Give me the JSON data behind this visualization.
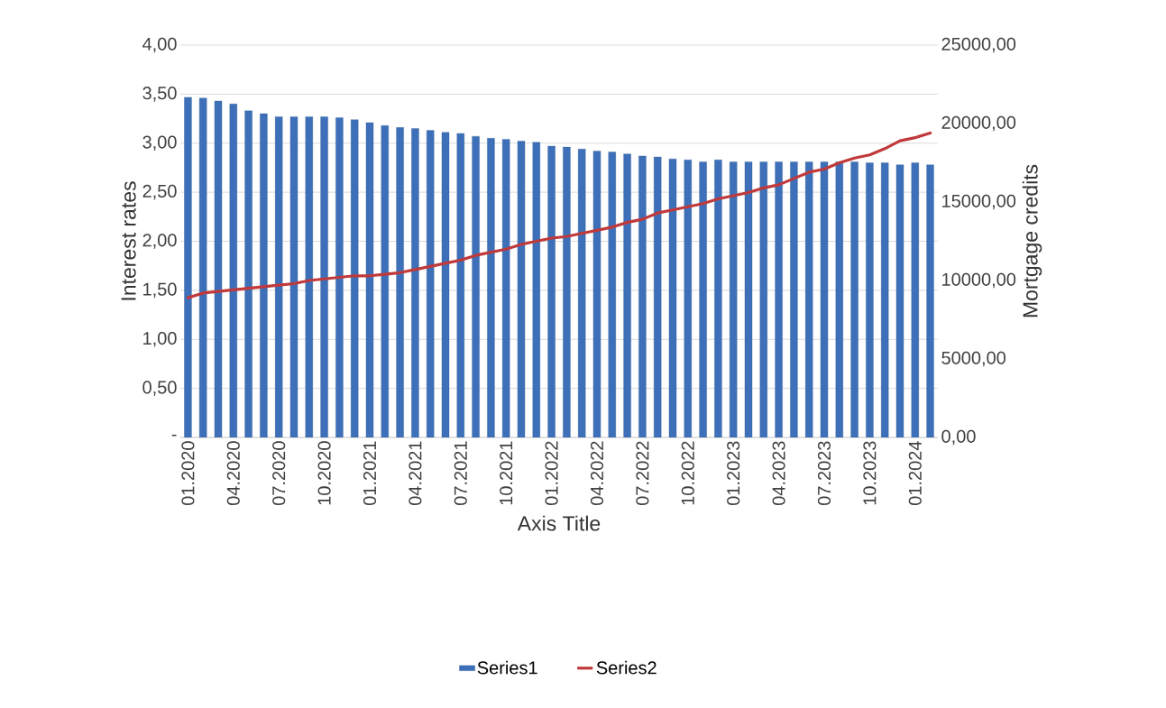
{
  "chart_data": {
    "type": "bar",
    "xlabel": "Axis Title",
    "ylabel": "Interest rates",
    "y2label": "Mortgage credits",
    "categories": [
      "01.2020",
      null,
      null,
      "04.2020",
      null,
      null,
      "07.2020",
      null,
      null,
      "10.2020",
      null,
      null,
      "01.2021",
      null,
      null,
      "04.2021",
      null,
      null,
      "07.2021",
      null,
      null,
      "10.2021",
      null,
      null,
      "01.2022",
      null,
      null,
      "04.2022",
      null,
      null,
      "07.2022",
      null,
      null,
      "10.2022",
      null,
      null,
      "01.2023",
      null,
      null,
      "04.2023",
      null,
      null,
      "07.2023",
      null,
      null,
      "10.2023",
      null,
      null,
      "01.2024",
      null
    ],
    "series": [
      {
        "name": "Series1",
        "color": "#3d70b8",
        "values": [
          3.47,
          3.46,
          3.43,
          3.4,
          3.33,
          3.3,
          3.27,
          3.27,
          3.27,
          3.27,
          3.26,
          3.24,
          3.21,
          3.18,
          3.16,
          3.15,
          3.13,
          3.11,
          3.1,
          3.07,
          3.05,
          3.04,
          3.02,
          3.01,
          2.97,
          2.96,
          2.94,
          2.92,
          2.91,
          2.89,
          2.87,
          2.86,
          2.84,
          2.83,
          2.81,
          2.83,
          2.81,
          2.81,
          2.81,
          2.81,
          2.81,
          2.81,
          2.81,
          2.81,
          2.81,
          2.8,
          2.8,
          2.78,
          2.8,
          2.78
        ]
      },
      {
        "name": "Series2",
        "type": "line",
        "axis": "y2",
        "color": "#c0393b",
        "values": [
          8900,
          9200,
          9300,
          9400,
          9500,
          9600,
          9700,
          9800,
          10000,
          10100,
          10200,
          10300,
          10300,
          10400,
          10500,
          10700,
          10900,
          11100,
          11300,
          11600,
          11800,
          12000,
          12300,
          12500,
          12700,
          12800,
          13000,
          13200,
          13400,
          13700,
          13900,
          14300,
          14500,
          14700,
          14900,
          15200,
          15400,
          15600,
          15900,
          16100,
          16500,
          16900,
          17100,
          17500,
          17800,
          18000,
          18400,
          18900,
          19100,
          19400
        ]
      }
    ],
    "ylim": [
      0,
      4
    ],
    "yticks": [
      {
        "value": 0,
        "label": "-"
      },
      {
        "value": 0.5,
        "label": "0,50"
      },
      {
        "value": 1,
        "label": "1,00"
      },
      {
        "value": 1.5,
        "label": "1,50"
      },
      {
        "value": 2,
        "label": "2,00"
      },
      {
        "value": 2.5,
        "label": "2,50"
      },
      {
        "value": 3,
        "label": "3,00"
      },
      {
        "value": 3.5,
        "label": "3,50"
      },
      {
        "value": 4,
        "label": "4,00"
      }
    ],
    "y2lim": [
      0,
      25000
    ],
    "y2ticks": [
      {
        "value": 0,
        "label": "0,00"
      },
      {
        "value": 5000,
        "label": "5000,00"
      },
      {
        "value": 10000,
        "label": "10000,00"
      },
      {
        "value": 15000,
        "label": "15000,00"
      },
      {
        "value": 20000,
        "label": "20000,00"
      },
      {
        "value": 25000,
        "label": "25000,00"
      }
    ],
    "grid": "y",
    "legend": "bottom"
  }
}
